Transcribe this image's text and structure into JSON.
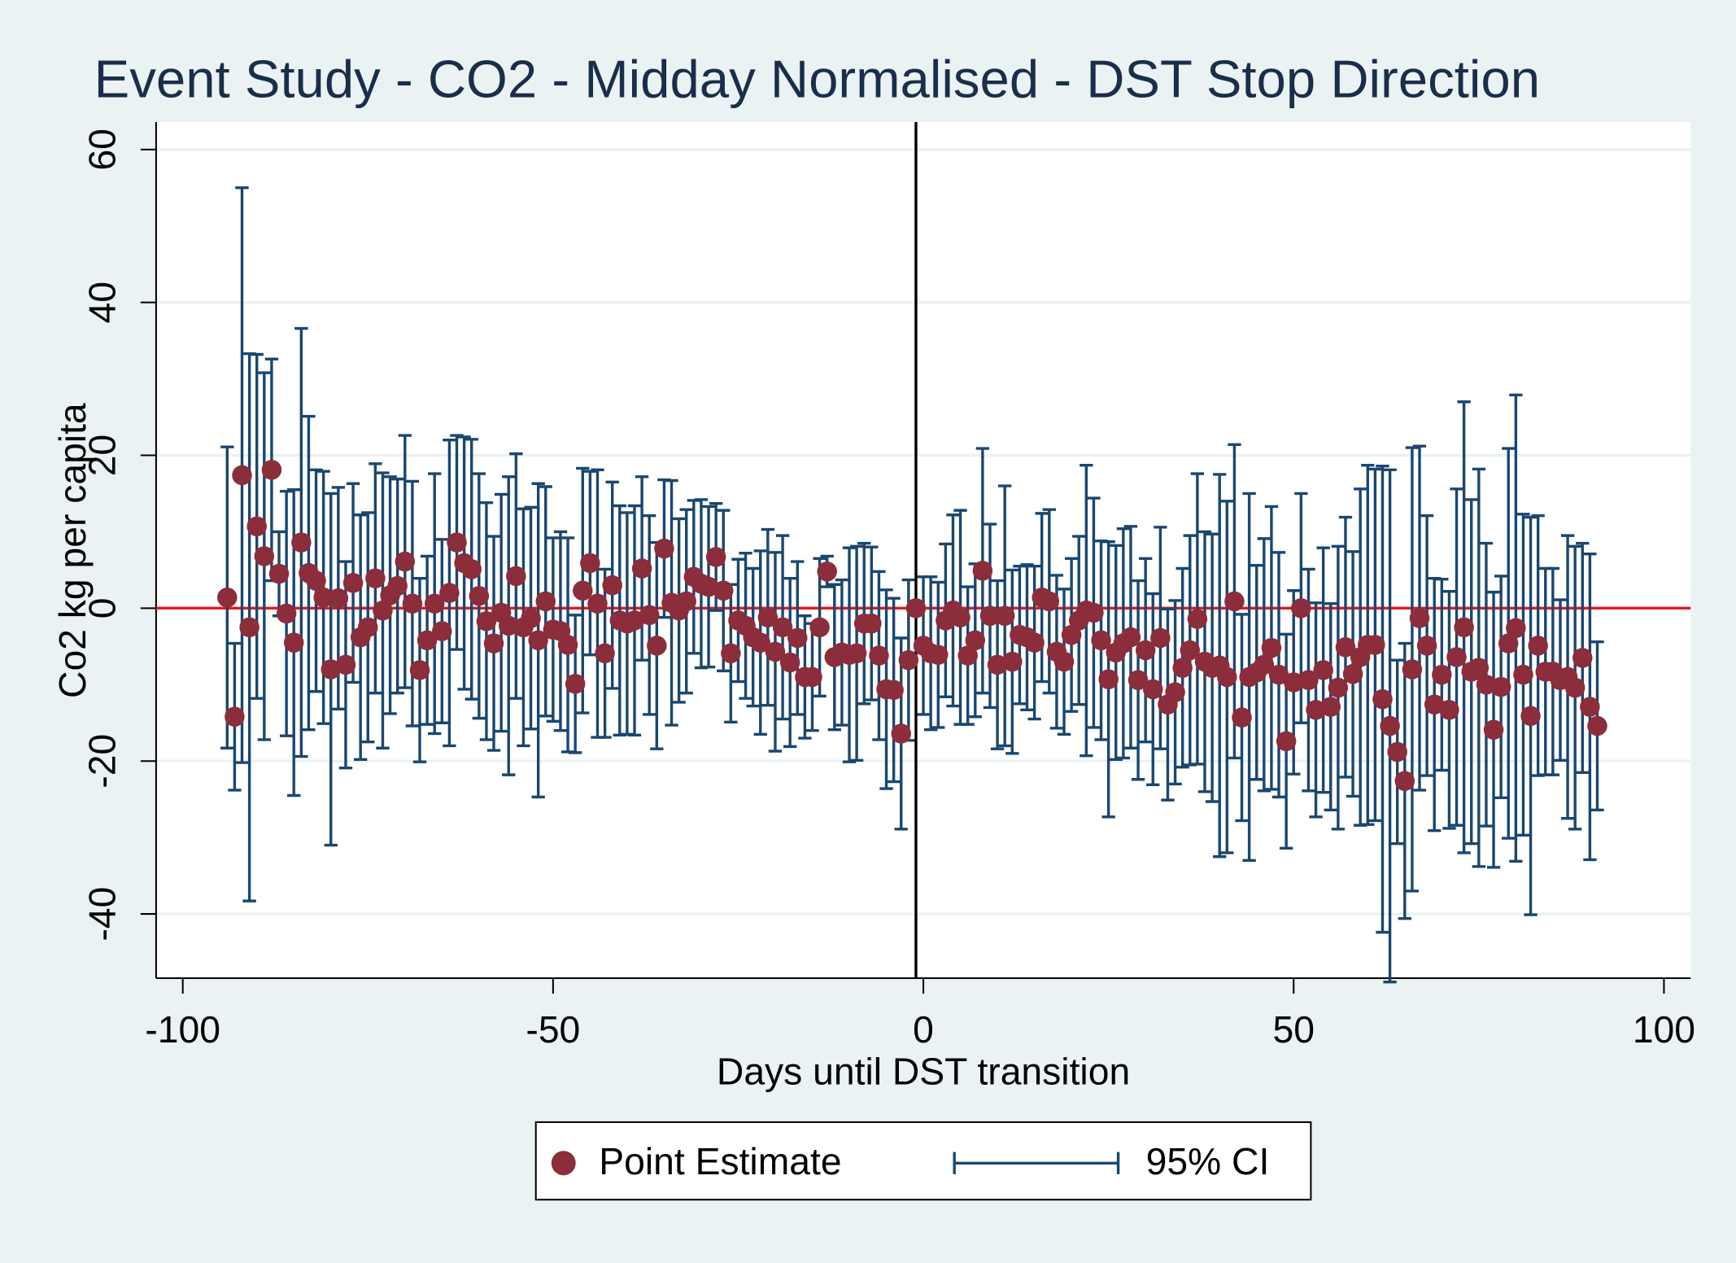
{
  "chart_data": {
    "type": "errorbar",
    "title": "Event Study - CO2 - Midday Normalised - DST Stop Direction",
    "x_label": "Days until DST transition",
    "y_label": "Co2 kg per capita",
    "x": [
      -94,
      -93,
      -92,
      -91,
      -90,
      -89,
      -88,
      -87,
      -86,
      -85,
      -84,
      -83,
      -82,
      -81,
      -80,
      -79,
      -78,
      -77,
      -76,
      -75,
      -74,
      -73,
      -72,
      -71,
      -70,
      -69,
      -68,
      -67,
      -66,
      -65,
      -64,
      -63,
      -62,
      -61,
      -60,
      -59,
      -58,
      -57,
      -56,
      -55,
      -54,
      -53,
      -52,
      -51,
      -50,
      -49,
      -48,
      -47,
      -46,
      -45,
      -44,
      -43,
      -42,
      -41,
      -40,
      -39,
      -38,
      -37,
      -36,
      -35,
      -34,
      -33,
      -32,
      -31,
      -30,
      -29,
      -28,
      -27,
      -26,
      -25,
      -24,
      -23,
      -22,
      -21,
      -20,
      -19,
      -18,
      -17,
      -16,
      -15,
      -14,
      -13,
      -12,
      -11,
      -10,
      -9,
      -8,
      -7,
      -6,
      -5,
      -4,
      -3,
      -2,
      -1,
      0,
      1,
      2,
      3,
      4,
      5,
      6,
      7,
      8,
      9,
      10,
      11,
      12,
      13,
      14,
      15,
      16,
      17,
      18,
      19,
      20,
      21,
      22,
      23,
      24,
      25,
      26,
      27,
      28,
      29,
      30,
      31,
      32,
      33,
      34,
      35,
      36,
      37,
      38,
      39,
      40,
      41,
      42,
      43,
      44,
      45,
      46,
      47,
      48,
      49,
      50,
      51,
      52,
      53,
      54,
      55,
      56,
      57,
      58,
      59,
      60,
      61,
      62,
      63,
      64,
      65,
      66,
      67,
      68,
      69,
      70,
      71,
      72,
      73,
      74,
      75,
      76,
      77,
      78,
      79,
      80,
      81,
      82,
      83,
      84,
      85,
      86,
      87,
      88,
      89,
      90,
      91
    ],
    "series": [
      {
        "name": "Point Estimate",
        "color": "#8c2d3c",
        "values": [
          1.4,
          -14.2,
          17.4,
          -2.5,
          10.7,
          6.8,
          18.1,
          4.5,
          -0.7,
          -4.5,
          8.6,
          4.6,
          3.6,
          1.4,
          -8.0,
          1.3,
          -7.4,
          3.3,
          -3.8,
          -2.5,
          3.9,
          -0.3,
          1.7,
          2.9,
          6.1,
          0.6,
          -8.1,
          -4.2,
          0.6,
          -3.0,
          2.0,
          8.6,
          5.9,
          5.1,
          1.6,
          -1.7,
          -4.6,
          -0.6,
          -2.3,
          4.2,
          -2.5,
          -1.3,
          -4.2,
          0.9,
          -2.8,
          -3.0,
          -4.8,
          -9.9,
          2.3,
          5.9,
          0.6,
          -5.9,
          3.0,
          -1.6,
          -2.0,
          -1.6,
          5.2,
          -0.9,
          -4.9,
          7.8,
          0.7,
          -0.3,
          0.9,
          4.1,
          3.2,
          2.8,
          6.7,
          2.3,
          -5.9,
          -1.6,
          -2.3,
          -3.8,
          -4.5,
          -1.2,
          -5.7,
          -2.5,
          -7.1,
          -3.9,
          -9.0,
          -9.0,
          -2.5,
          4.8,
          -6.4,
          -5.8,
          -6.1,
          -5.9,
          -2.0,
          -2.0,
          -6.2,
          -10.6,
          -10.7,
          -16.4,
          -6.8,
          0,
          -4.9,
          -5.9,
          -6.1,
          -1.6,
          -0.3,
          -1.2,
          -6.2,
          -4.2,
          4.9,
          -1.0,
          -7.4,
          -1.0,
          -7.0,
          -3.5,
          -3.8,
          -4.5,
          1.4,
          0.9,
          -5.7,
          -7.0,
          -3.5,
          -1.6,
          -0.3,
          -0.6,
          -4.2,
          -9.3,
          -5.8,
          -4.6,
          -3.8,
          -9.4,
          -5.5,
          -10.6,
          -3.9,
          -12.6,
          -11.0,
          -7.8,
          -5.5,
          -1.4,
          -7.0,
          -7.8,
          -7.5,
          -9.0,
          0.9,
          -14.3,
          -9.0,
          -8.4,
          -7.4,
          -5.2,
          -8.7,
          -17.4,
          -9.7,
          0,
          -9.4,
          -13.3,
          -8.1,
          -12.9,
          -10.4,
          -5.1,
          -8.6,
          -6.4,
          -4.8,
          -4.8,
          -11.9,
          -15.4,
          -18.8,
          -22.6,
          -8.0,
          -1.3,
          -4.9,
          -12.6,
          -8.7,
          -13.3,
          -6.4,
          -2.5,
          -8.3,
          -7.8,
          -10.0,
          -15.9,
          -10.3,
          -4.6,
          -2.6,
          -8.7,
          -14.1,
          -4.9,
          -8.3,
          -8.3,
          -9.4,
          -9.0,
          -10.4,
          -6.5,
          -12.9,
          -15.4
        ]
      },
      {
        "name": "95% CI",
        "color": "#1a476f",
        "errors": [
          19.7,
          9.6,
          37.6,
          35.8,
          22.5,
          24,
          14.5,
          5.5,
          16,
          20,
          28,
          20.5,
          14.5,
          16.5,
          23,
          14.5,
          13.5,
          13,
          16,
          15,
          15,
          18,
          15.5,
          14,
          16.5,
          16,
          12,
          11,
          17,
          12,
          20,
          14,
          16.5,
          17,
          16,
          15.5,
          14,
          15.5,
          19.5,
          16,
          15.5,
          14.5,
          20.5,
          15,
          12,
          13,
          14,
          9,
          16,
          12,
          17.5,
          11,
          13.5,
          15,
          14.5,
          15,
          12,
          13,
          13.5,
          9,
          16,
          12,
          12,
          10,
          11,
          10.5,
          7,
          10.5,
          9,
          8,
          9.5,
          9,
          12,
          11.5,
          13,
          12,
          11,
          10,
          8,
          7,
          9,
          2,
          9.5,
          9.5,
          14,
          14,
          10.5,
          10,
          11,
          13,
          12,
          12.5,
          10.5,
          0,
          9,
          10,
          9.5,
          10,
          12.5,
          14,
          9,
          10,
          16,
          12,
          11,
          17,
          12,
          9,
          9.5,
          10,
          11,
          12,
          10,
          9.5,
          10,
          11,
          19,
          15,
          13,
          18,
          14,
          15,
          14.5,
          13,
          12,
          12.5,
          14.5,
          12.5,
          12,
          13,
          15,
          19,
          17,
          17.5,
          25,
          23,
          20.5,
          13.5,
          24,
          14,
          16.5,
          18.5,
          16,
          14,
          12,
          15,
          14.5,
          14,
          16,
          13.5,
          18.5,
          17,
          16,
          22,
          23.5,
          23,
          30.5,
          33.5,
          12,
          18,
          29,
          22.5,
          17,
          16.5,
          12.5,
          15.5,
          22,
          29.5,
          22.5,
          26,
          18.5,
          18,
          14.5,
          25.5,
          30.5,
          21,
          26,
          17,
          13.5,
          13.5,
          10.5,
          18.5,
          18.5,
          15,
          20,
          11
        ]
      }
    ],
    "xlim": [
      -103.6,
      103.6
    ],
    "xticks": [
      -100,
      -50,
      0,
      50,
      100
    ],
    "ylim": [
      -48.4,
      63.6
    ],
    "yticks": [
      -40,
      -20,
      0,
      20,
      40,
      60
    ],
    "hline": 0,
    "hline_color": "#e41a1c",
    "vline": -1,
    "vline_color": "#000000",
    "grid": true,
    "legend": "bottom"
  }
}
